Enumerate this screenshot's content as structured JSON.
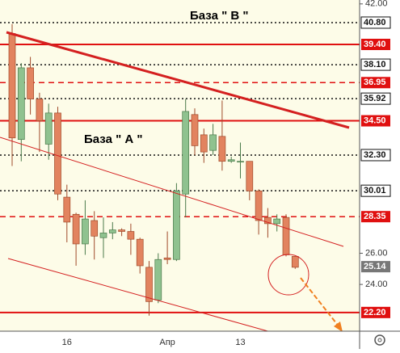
{
  "chart_data": {
    "type": "candlestick",
    "annotations": [
      "База \" В \"",
      "База \" А \""
    ],
    "categories": [
      null,
      null,
      null,
      null,
      null,
      null,
      "16",
      null,
      null,
      null,
      null,
      null,
      null,
      null,
      null,
      null,
      null,
      "Апр",
      null,
      null,
      null,
      null,
      null,
      null,
      null,
      "13",
      null,
      null,
      null,
      null,
      null,
      null
    ],
    "open": [
      40.1,
      33.3,
      37.9,
      35.9,
      33.0,
      35.0,
      29.6,
      28.5,
      26.6,
      28.1,
      27.0,
      27.3,
      27.5,
      27.4,
      26.9,
      25.1,
      23.0,
      25.7,
      25.6,
      29.8,
      34.9,
      33.6,
      32.6,
      33.5,
      31.9,
      31.9,
      31.9,
      30.0,
      28.3,
      27.9,
      28.3,
      25.8
    ],
    "high": [
      40.7,
      38.2,
      38.6,
      36.3,
      35.6,
      35.4,
      30.4,
      28.6,
      29.4,
      28.7,
      28.3,
      28.0,
      27.6,
      27.9,
      27.0,
      25.5,
      26.0,
      27.4,
      30.5,
      35.9,
      35.3,
      34.0,
      34.3,
      35.8,
      32.2,
      33.1,
      31.9,
      30.1,
      28.9,
      28.5,
      28.5,
      25.8
    ],
    "low": [
      31.6,
      31.9,
      34.9,
      32.5,
      32.0,
      29.4,
      26.7,
      25.2,
      25.9,
      25.6,
      25.7,
      26.9,
      27.1,
      25.9,
      24.7,
      22.0,
      22.8,
      25.3,
      25.5,
      28.3,
      32.3,
      31.8,
      32.3,
      31.3,
      31.8,
      30.8,
      29.4,
      27.2,
      27.0,
      27.4,
      25.8,
      25.0
    ],
    "close": [
      33.4,
      37.9,
      35.9,
      34.5,
      35.0,
      29.8,
      28.0,
      26.6,
      28.2,
      27.1,
      27.3,
      27.5,
      27.4,
      26.9,
      25.2,
      22.9,
      25.6,
      25.6,
      30.0,
      35.1,
      32.9,
      32.5,
      33.6,
      31.9,
      32.0,
      31.9,
      30.0,
      28.1,
      27.9,
      28.2,
      25.9,
      25.1
    ],
    "up_color": "#8fc28f",
    "down_color": "#e2835f",
    "ylim": [
      21.0,
      42.25
    ],
    "yticks": [
      {
        "value": 42,
        "label": "42.00"
      },
      {
        "value": 26,
        "label": "26.00"
      },
      {
        "value": 24,
        "label": "24.00"
      }
    ],
    "levels": [
      {
        "value": 40.8,
        "label": "40.80",
        "style": "dotted",
        "color": "#111111"
      },
      {
        "value": 39.4,
        "label": "39.40",
        "style": "solid",
        "color": "#e01010"
      },
      {
        "value": 38.1,
        "label": "38.10",
        "style": "dotted",
        "color": "#111111"
      },
      {
        "value": 36.95,
        "label": "36.95",
        "style": "dashed",
        "color": "#e01010"
      },
      {
        "value": 35.92,
        "label": "35.92",
        "style": "dotted",
        "color": "#111111"
      },
      {
        "value": 34.5,
        "label": "34.50",
        "style": "solid",
        "color": "#e01010"
      },
      {
        "value": 32.3,
        "label": "32.30",
        "style": "dotted",
        "color": "#111111"
      },
      {
        "value": 30.01,
        "label": "30.01",
        "style": "dotted",
        "color": "#111111"
      },
      {
        "value": 28.35,
        "label": "28.35",
        "style": "dashed",
        "color": "#e01010"
      },
      {
        "value": 22.2,
        "label": "22.20",
        "style": "solid",
        "color": "#e01010"
      }
    ],
    "last": {
      "value": 25.14,
      "label": "25.14",
      "color": "#777777"
    }
  }
}
